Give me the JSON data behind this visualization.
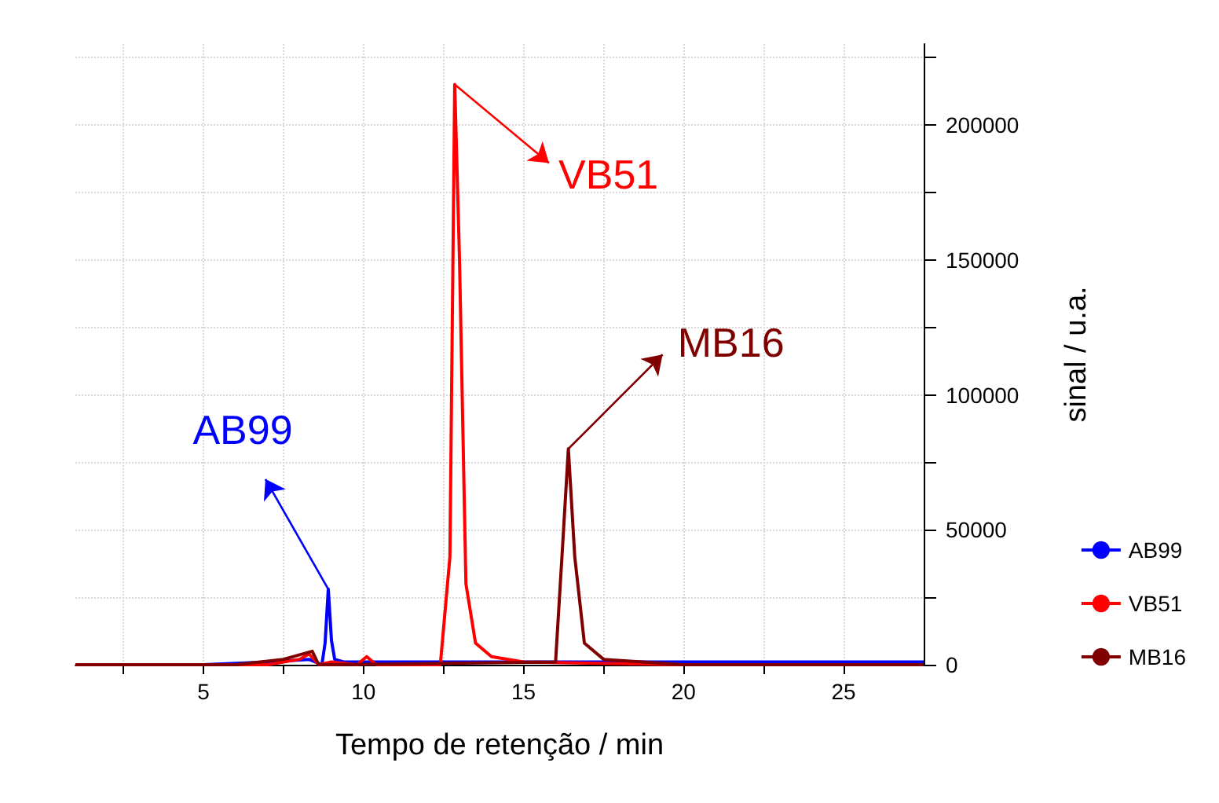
{
  "chart_data": {
    "type": "line",
    "xlabel": "Tempo de retenção / min",
    "ylabel": "sinal / u.a.",
    "xlim": [
      1,
      27.5
    ],
    "xticks": [
      {
        "value": 2.5,
        "label": null
      },
      5,
      {
        "value": 7.5,
        "label": null
      },
      10,
      {
        "value": 12.5,
        "label": null
      },
      15,
      {
        "value": 17.5,
        "label": null
      },
      20,
      {
        "value": 22.5,
        "label": null
      },
      25
    ],
    "ylim": [
      0,
      230000
    ],
    "yticks": [
      0,
      {
        "value": 25000,
        "label": null
      },
      50000,
      {
        "value": 75000,
        "label": null
      },
      100000,
      {
        "value": 125000,
        "label": null
      },
      150000,
      {
        "value": 175000,
        "label": null
      },
      200000,
      {
        "value": 225000,
        "label": null
      }
    ],
    "grid": true,
    "legend": "right",
    "series": [
      {
        "name": "AB99",
        "color": "#0000ff",
        "x": [
          1,
          5,
          7,
          8.3,
          8.7,
          8.8,
          8.9,
          9.0,
          9.1,
          9.4,
          10,
          15,
          20,
          27.5
        ],
        "values": [
          0,
          0,
          1000,
          2000,
          0,
          8000,
          28000,
          9000,
          2000,
          1000,
          1000,
          1000,
          1000,
          1000
        ]
      },
      {
        "name": "VB51",
        "color": "#ff0000",
        "x": [
          1,
          7,
          8.0,
          8.3,
          8.6,
          9.0,
          9.8,
          10.1,
          10.4,
          12.4,
          12.7,
          12.85,
          13.0,
          13.2,
          13.5,
          14,
          15,
          20,
          27.5
        ],
        "values": [
          0,
          0,
          2000,
          4000,
          0,
          1000,
          0,
          3000,
          0,
          0,
          40000,
          215000,
          150000,
          30000,
          8000,
          3000,
          1000,
          0,
          0
        ]
      },
      {
        "name": "MB16",
        "color": "#800000",
        "x": [
          1,
          6,
          7.5,
          8.4,
          8.6,
          9,
          16.0,
          16.2,
          16.4,
          16.6,
          16.9,
          17.5,
          20,
          27.5
        ],
        "values": [
          0,
          0,
          2000,
          5000,
          0,
          0,
          1000,
          40000,
          80000,
          40000,
          8000,
          2000,
          0,
          0
        ]
      }
    ],
    "annotations": [
      {
        "text": "AB99",
        "x": 8.9,
        "y": 28000
      },
      {
        "text": "VB51",
        "x": 12.85,
        "y": 215000
      },
      {
        "text": "MB16",
        "x": 16.4,
        "y": 80000
      }
    ]
  }
}
